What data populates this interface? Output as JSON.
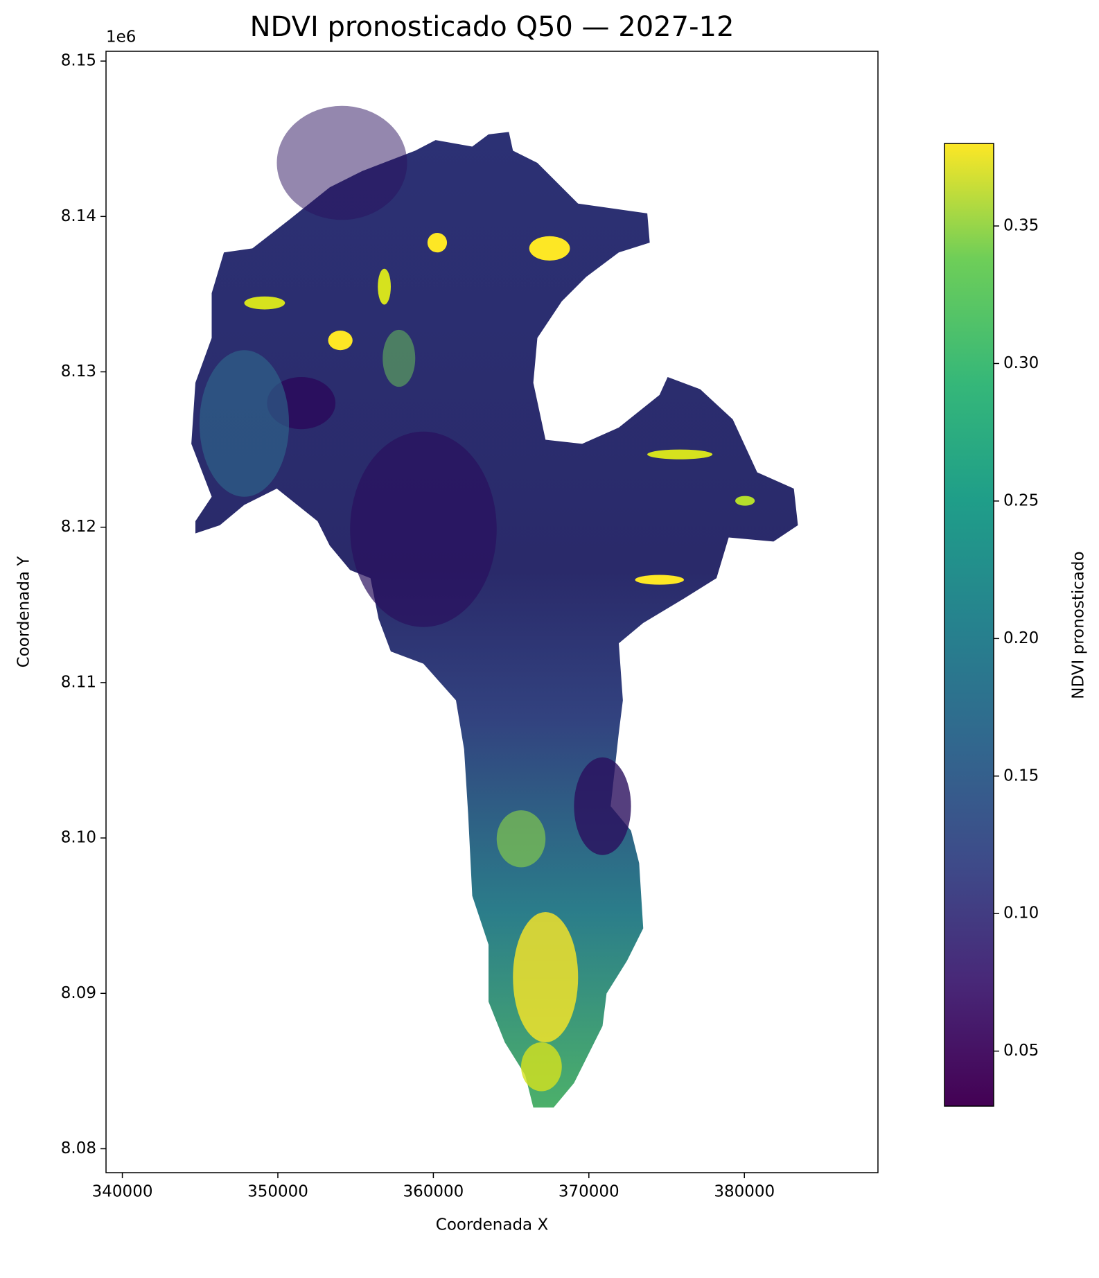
{
  "chart_data": {
    "type": "raster",
    "title": "NDVI pronosticado Q50 — 2027-12",
    "x_label": "Coordenada X",
    "y_label": "Coordenada Y",
    "y_offset_label": "1e6",
    "xlim": [
      338950,
      388590
    ],
    "ylim": [
      8078460,
      8150630
    ],
    "xticks": [
      340000,
      350000,
      360000,
      370000,
      380000
    ],
    "yticks": [
      {
        "value": 8080000,
        "label": "8.08"
      },
      {
        "value": 8090000,
        "label": "8.09"
      },
      {
        "value": 8100000,
        "label": "8.10"
      },
      {
        "value": 8110000,
        "label": "8.11"
      },
      {
        "value": 8120000,
        "label": "8.12"
      },
      {
        "value": 8130000,
        "label": "8.13"
      },
      {
        "value": 8140000,
        "label": "8.14"
      },
      {
        "value": 8150000,
        "label": "8.15"
      }
    ],
    "colorbar": {
      "label": "NDVI pronosticado",
      "colormap": "viridis",
      "clim": [
        0.03,
        0.38
      ],
      "ticks": [
        0.05,
        {
          "value": 0.1,
          "label": "0.10"
        },
        0.15,
        {
          "value": 0.2,
          "label": "0.20"
        },
        0.25,
        {
          "value": 0.3,
          "label": "0.30"
        },
        0.35
      ]
    }
  }
}
